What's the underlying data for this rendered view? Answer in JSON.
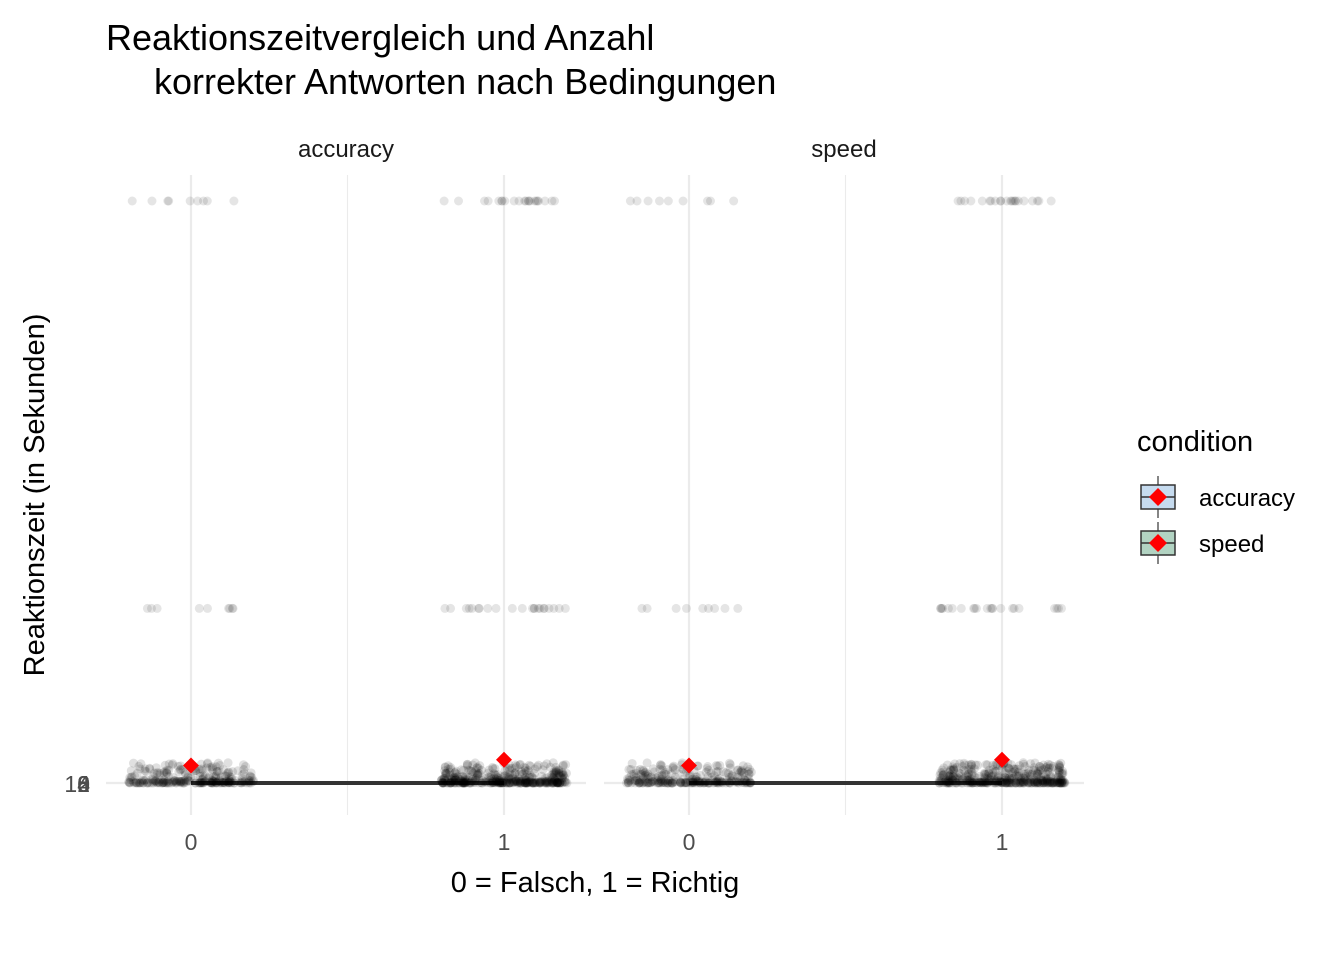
{
  "chart_data": {
    "type": "scatter",
    "title_line1": "Reaktionszeitvergleich und Anzahl",
    "title_line2": "korrekter Antworten nach Bedingungen",
    "xlabel": "0 = Falsch, 1 = Richtig",
    "ylabel": "Reaktionszeit (in Sekunden)",
    "y_tick_labels": [
      "10",
      "2",
      "4",
      "6",
      "8"
    ],
    "x_categories": [
      "0",
      "1"
    ],
    "facets": [
      {
        "name": "accuracy",
        "groups": [
          {
            "x": "0",
            "mean": 0.3,
            "median": 0.2,
            "outlier_levels": [
              10.0,
              3.0
            ]
          },
          {
            "x": "1",
            "mean": 0.4,
            "median": 0.2,
            "outlier_levels": [
              10.0,
              3.0
            ]
          }
        ]
      },
      {
        "name": "speed",
        "groups": [
          {
            "x": "0",
            "mean": 0.3,
            "median": 0.2,
            "outlier_levels": [
              10.0,
              3.0
            ]
          },
          {
            "x": "1",
            "mean": 0.4,
            "median": 0.2,
            "outlier_levels": [
              10.0,
              3.0
            ]
          }
        ]
      }
    ],
    "legend": {
      "title": "condition",
      "entries": [
        {
          "label": "accuracy",
          "fill": "#c6dbef"
        },
        {
          "label": "speed",
          "fill": "#b2d3c2"
        }
      ],
      "placement": "right"
    },
    "mean_marker_color": "#ff0000",
    "point_color": "#000000",
    "grid": true
  }
}
